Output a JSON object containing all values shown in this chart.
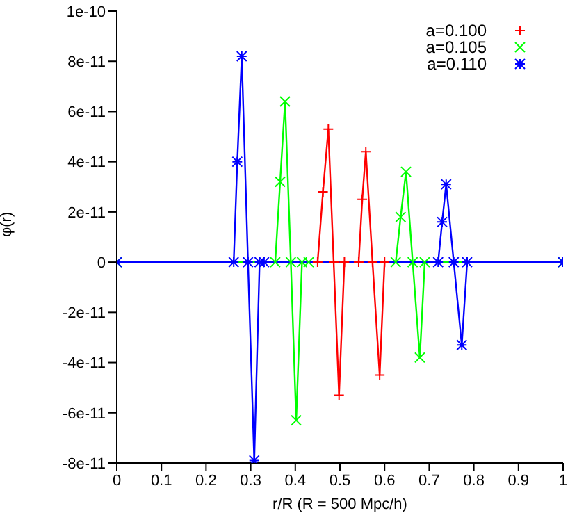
{
  "chart_data": {
    "type": "line",
    "xlabel": "r/R  (R = 500 Mpc/h)",
    "ylabel": "φ(r)",
    "xlim": [
      0,
      1
    ],
    "xticks": [
      0,
      0.1,
      0.2,
      0.3,
      0.4,
      0.5,
      0.6,
      0.7,
      0.8,
      0.9,
      1
    ],
    "ylim": [
      -8e-11,
      1e-10
    ],
    "yticks": [
      -8e-11,
      -6e-11,
      -4e-11,
      -2e-11,
      0,
      2e-11,
      4e-11,
      6e-11,
      8e-11,
      1e-10
    ],
    "grid": false,
    "legend": "top right",
    "marker": "cross",
    "line_style": "solid",
    "series": [
      {
        "name": "a=0.100",
        "color": "#ff0000",
        "x": [
          0,
          0.45,
          0.462,
          0.474,
          0.486,
          0.498,
          0.51,
          0.542,
          0.55,
          0.558,
          0.573,
          0.589,
          0.6,
          1
        ],
        "values": [
          0,
          0,
          2.8e-11,
          5.3e-11,
          0,
          -5.3e-11,
          0,
          0,
          2.5e-11,
          4.4e-11,
          0,
          -4.5e-11,
          0,
          0
        ]
      },
      {
        "name": "a=0.105",
        "color": "#00ff00",
        "x": [
          0,
          0.355,
          0.366,
          0.377,
          0.39,
          0.402,
          0.415,
          0.43,
          0.625,
          0.636,
          0.648,
          0.663,
          0.679,
          0.69,
          1
        ],
        "values": [
          0,
          0,
          3.2e-11,
          6.4e-11,
          0,
          -6.3e-11,
          0,
          0,
          0,
          1.8e-11,
          3.6e-11,
          0,
          -3.8e-11,
          0,
          0
        ]
      },
      {
        "name": "a=0.110",
        "color": "#0000ff",
        "x": [
          0,
          0.262,
          0.27,
          0.28,
          0.294,
          0.308,
          0.32,
          0.33,
          0.72,
          0.729,
          0.738,
          0.755,
          0.773,
          0.785,
          1
        ],
        "values": [
          0,
          0,
          4e-11,
          8.2e-11,
          0,
          -7.9e-11,
          0,
          0,
          0,
          1.6e-11,
          3.1e-11,
          0,
          -3.3e-11,
          0,
          0
        ]
      }
    ]
  }
}
